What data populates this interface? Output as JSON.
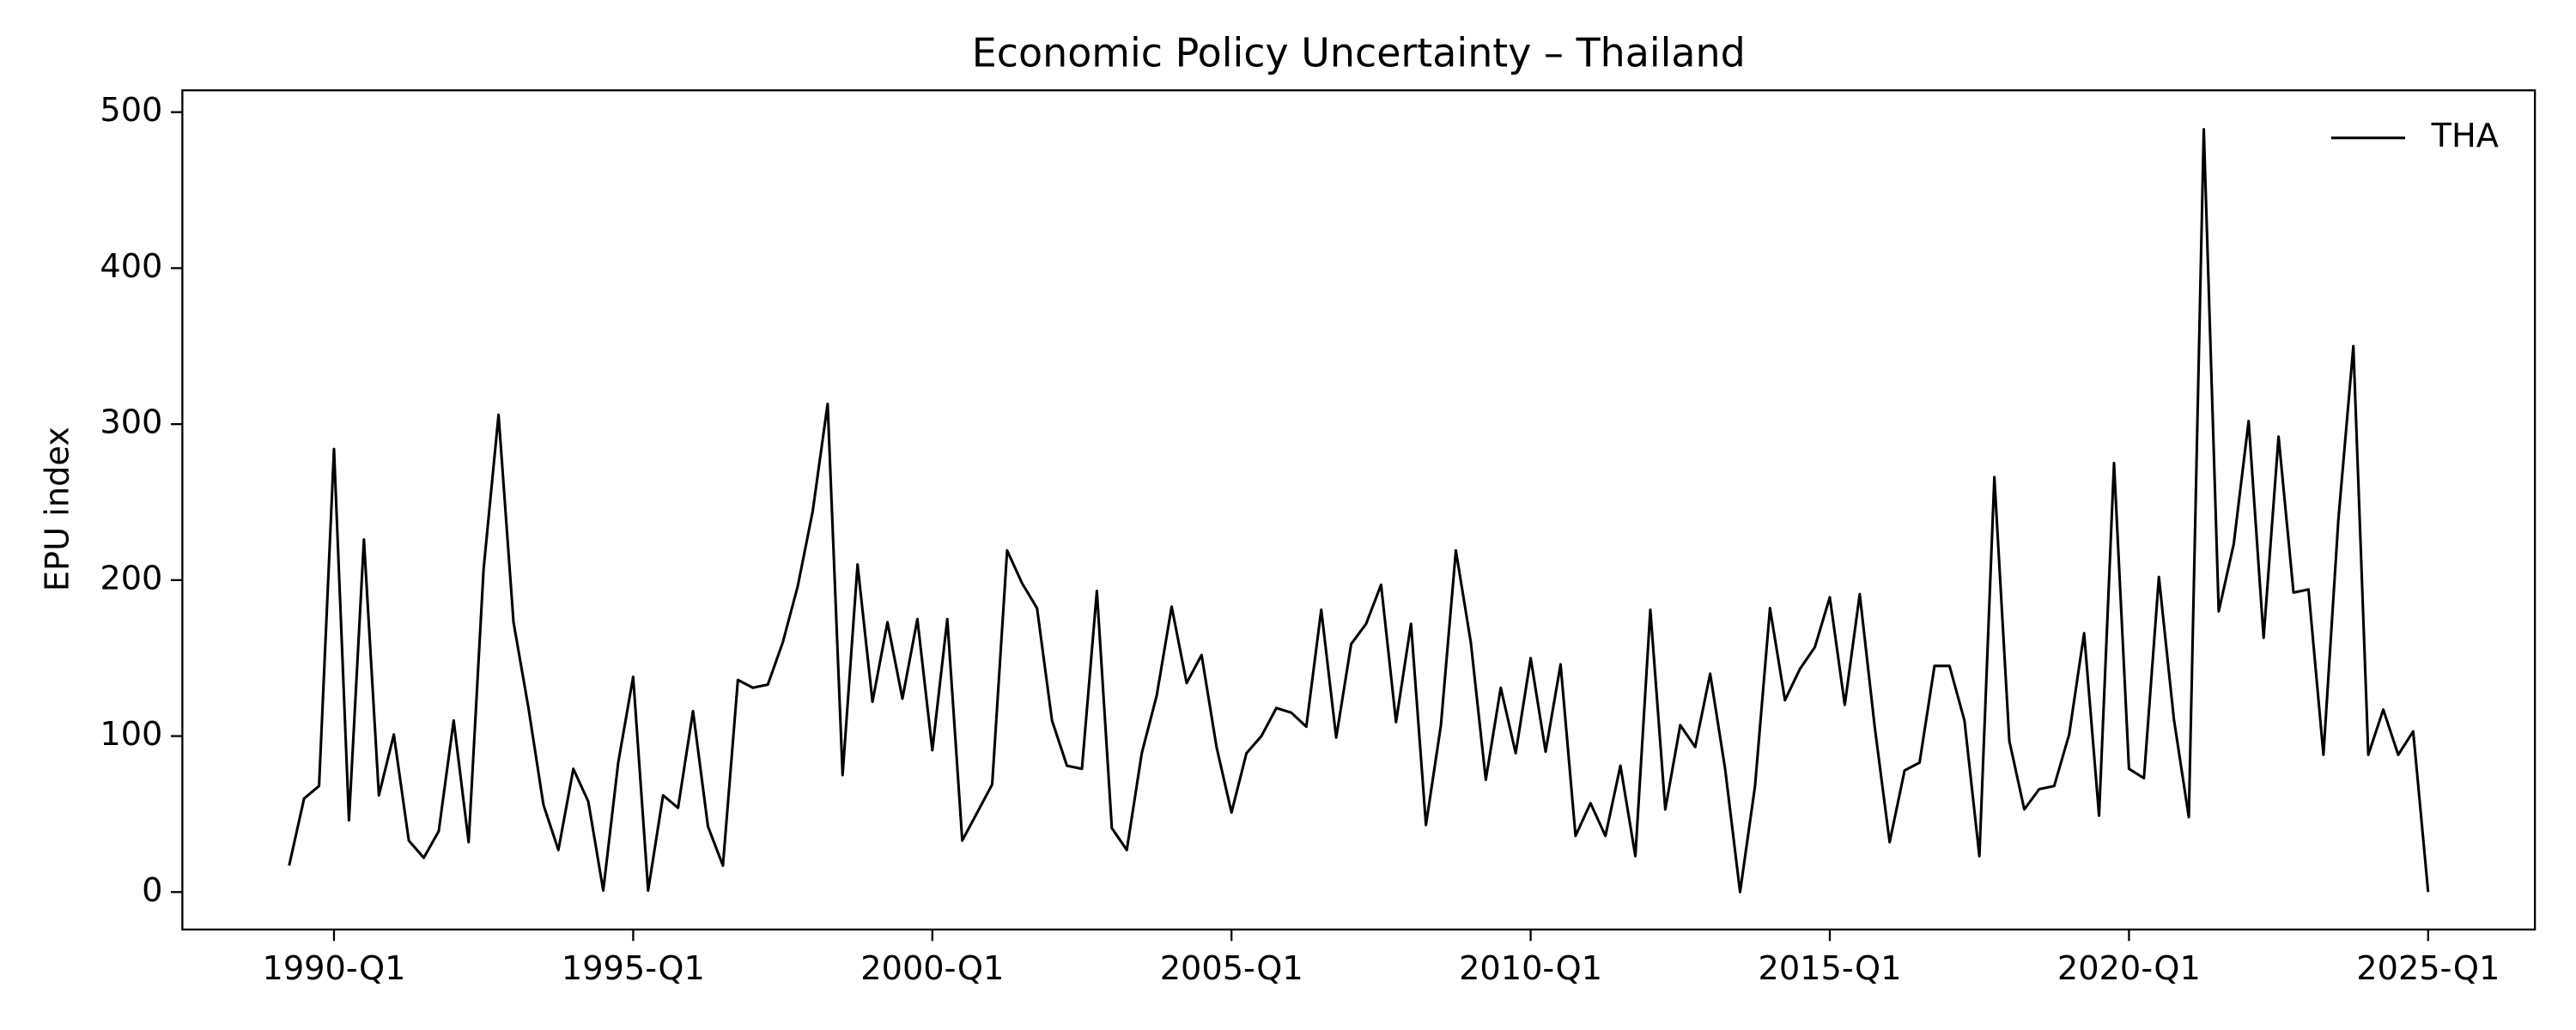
{
  "chart_data": {
    "type": "line",
    "title": "Economic Policy Uncertainty – Thailand",
    "y_label": "EPU index",
    "categories": [
      "1989-Q2",
      "1989-Q3",
      "1989-Q4",
      "1990-Q1",
      "1990-Q2",
      "1990-Q3",
      "1990-Q4",
      "1991-Q1",
      "1991-Q2",
      "1991-Q3",
      "1991-Q4",
      "1992-Q1",
      "1992-Q2",
      "1992-Q3",
      "1992-Q4",
      "1993-Q1",
      "1993-Q2",
      "1993-Q3",
      "1993-Q4",
      "1994-Q1",
      "1994-Q2",
      "1994-Q3",
      "1994-Q4",
      "1995-Q1",
      "1995-Q2",
      "1995-Q3",
      "1995-Q4",
      "1996-Q1",
      "1996-Q2",
      "1996-Q3",
      "1996-Q4",
      "1997-Q1",
      "1997-Q2",
      "1997-Q3",
      "1997-Q4",
      "1998-Q1",
      "1998-Q2",
      "1998-Q3",
      "1998-Q4",
      "1999-Q1",
      "1999-Q2",
      "1999-Q3",
      "1999-Q4",
      "2000-Q1",
      "2000-Q2",
      "2000-Q3",
      "2000-Q4",
      "2001-Q1",
      "2001-Q2",
      "2001-Q3",
      "2001-Q4",
      "2002-Q1",
      "2002-Q2",
      "2002-Q3",
      "2002-Q4",
      "2003-Q1",
      "2003-Q2",
      "2003-Q3",
      "2003-Q4",
      "2004-Q1",
      "2004-Q2",
      "2004-Q3",
      "2004-Q4",
      "2005-Q1",
      "2005-Q2",
      "2005-Q3",
      "2005-Q4",
      "2006-Q1",
      "2006-Q2",
      "2006-Q3",
      "2006-Q4",
      "2007-Q1",
      "2007-Q2",
      "2007-Q3",
      "2007-Q4",
      "2008-Q1",
      "2008-Q2",
      "2008-Q3",
      "2008-Q4",
      "2009-Q1",
      "2009-Q2",
      "2009-Q3",
      "2009-Q4",
      "2010-Q1",
      "2010-Q2",
      "2010-Q3",
      "2010-Q4",
      "2011-Q1",
      "2011-Q2",
      "2011-Q3",
      "2011-Q4",
      "2012-Q1",
      "2012-Q2",
      "2012-Q3",
      "2012-Q4",
      "2013-Q1",
      "2013-Q2",
      "2013-Q3",
      "2013-Q4",
      "2014-Q1",
      "2014-Q2",
      "2014-Q3",
      "2014-Q4",
      "2015-Q1",
      "2015-Q2",
      "2015-Q3",
      "2015-Q4",
      "2016-Q1",
      "2016-Q2",
      "2016-Q3",
      "2016-Q4",
      "2017-Q1",
      "2017-Q2",
      "2017-Q3",
      "2017-Q4",
      "2018-Q1",
      "2018-Q2",
      "2018-Q3",
      "2018-Q4",
      "2019-Q1",
      "2019-Q2",
      "2019-Q3",
      "2019-Q4",
      "2020-Q1",
      "2020-Q2",
      "2020-Q3",
      "2020-Q4",
      "2021-Q1",
      "2021-Q2",
      "2021-Q3",
      "2021-Q4",
      "2022-Q1",
      "2022-Q2",
      "2022-Q3",
      "2022-Q4",
      "2023-Q1",
      "2023-Q2",
      "2023-Q3",
      "2023-Q4",
      "2024-Q1",
      "2024-Q2",
      "2024-Q3",
      "2024-Q4",
      "2025-Q1"
    ],
    "series": [
      {
        "name": "THA",
        "color": "#000000",
        "values": [
          17,
          60,
          68,
          284,
          46,
          226,
          62,
          101,
          33,
          22,
          39,
          110,
          32,
          207,
          306,
          173,
          118,
          56,
          27,
          79,
          58,
          1,
          83,
          138,
          1,
          62,
          54,
          116,
          42,
          17,
          136,
          131,
          133,
          160,
          196,
          244,
          313,
          75,
          210,
          122,
          173,
          124,
          175,
          91,
          175,
          33,
          51,
          69,
          219,
          198,
          182,
          110,
          81,
          79,
          193,
          41,
          27,
          89,
          126,
          183,
          134,
          152,
          93,
          51,
          89,
          100,
          118,
          115,
          106,
          181,
          99,
          159,
          172,
          197,
          109,
          172,
          43,
          107,
          219,
          160,
          72,
          131,
          89,
          150,
          90,
          146,
          36,
          57,
          36,
          81,
          23,
          181,
          53,
          107,
          93,
          140,
          79,
          0,
          68,
          182,
          123,
          143,
          157,
          189,
          120,
          191,
          106,
          32,
          78,
          83,
          145,
          145,
          110,
          23,
          266,
          97,
          53,
          66,
          68,
          101,
          166,
          49,
          275,
          79,
          73,
          202,
          111,
          48,
          489,
          180,
          223,
          302,
          163,
          292,
          192,
          194,
          88,
          239,
          350,
          88,
          117,
          88,
          103,
          0
        ]
      }
    ],
    "xticks": [
      "1990-Q1",
      "1995-Q1",
      "2000-Q1",
      "2005-Q1",
      "2010-Q1",
      "2015-Q1",
      "2020-Q1",
      "2025-Q1"
    ],
    "ylim": [
      -24,
      514
    ],
    "yticks": [
      0,
      100,
      200,
      300,
      400,
      500
    ],
    "legend": "upper right",
    "grid": false
  }
}
